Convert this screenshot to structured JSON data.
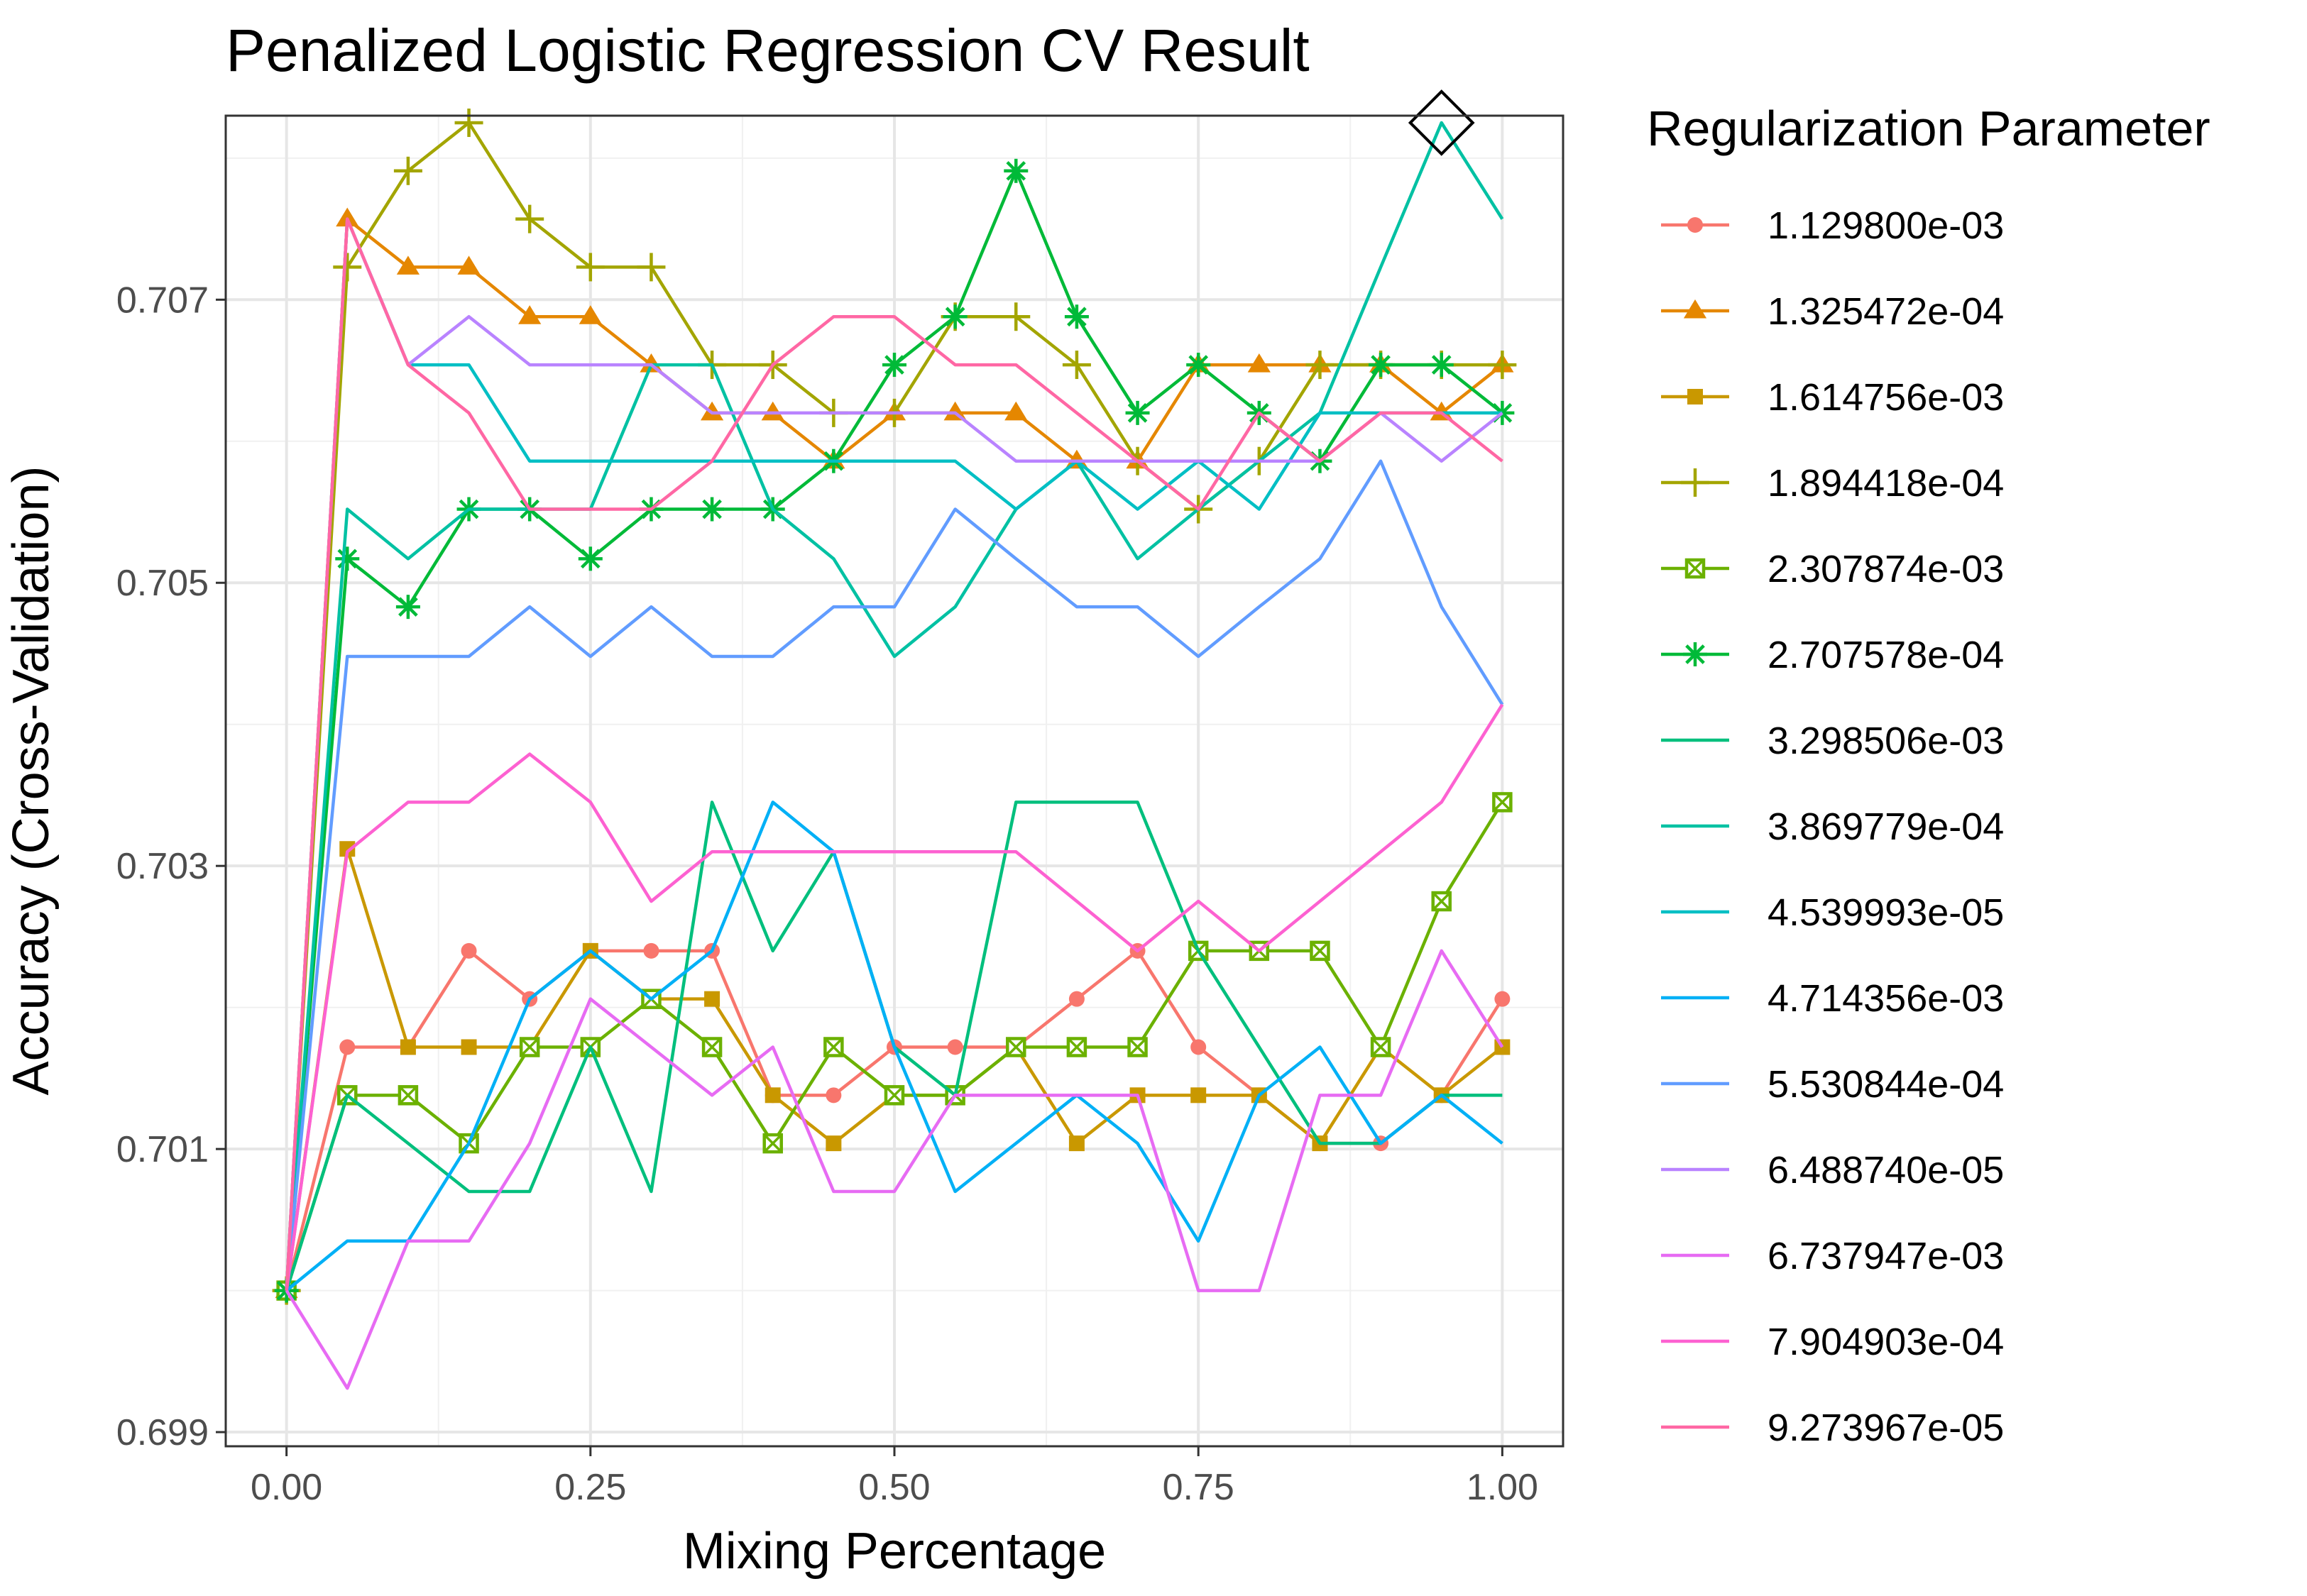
{
  "chart_data": {
    "type": "line",
    "title": "Penalized Logistic Regression CV Result",
    "xlabel": "Mixing Percentage",
    "ylabel": "Accuracy (Cross-Validation)",
    "legend_title": "Regularization Parameter",
    "legend_position": "right",
    "grid": true,
    "xlim": [
      -0.05,
      1.05
    ],
    "ylim": [
      0.6989,
      0.7083
    ],
    "x": [
      0,
      0.05,
      0.1,
      0.15,
      0.2,
      0.25,
      0.3,
      0.35,
      0.4,
      0.45,
      0.5,
      0.55,
      0.6,
      0.65,
      0.7,
      0.75,
      0.8,
      0.85,
      0.9,
      0.95,
      1.0
    ],
    "x_ticks": [
      {
        "value": 0,
        "label": "0.00"
      },
      {
        "value": 0.25,
        "label": "0.25"
      },
      {
        "value": 0.5,
        "label": "0.50"
      },
      {
        "value": 0.75,
        "label": "0.75"
      },
      {
        "value": 1,
        "label": "1.00"
      }
    ],
    "y_ticks": [
      {
        "value": 0.699,
        "label": "0.699"
      },
      {
        "value": 0.701,
        "label": "0.701"
      },
      {
        "value": 0.703,
        "label": "0.703"
      },
      {
        "value": 0.705,
        "label": "0.705"
      },
      {
        "value": 0.707,
        "label": "0.707"
      }
    ],
    "best_point": {
      "x": 0.95,
      "y": 0.70825,
      "marker": "diamond"
    },
    "series": [
      {
        "name": "1.129800e-03",
        "color": "#F8766D",
        "marker": "circle",
        "values": [
          0.7,
          0.70172,
          0.70172,
          0.7024,
          0.70206,
          0.7024,
          0.7024,
          0.7024,
          0.70138,
          0.70138,
          0.70172,
          0.70172,
          0.70172,
          0.70206,
          0.7024,
          0.70172,
          0.70138,
          0.70104,
          0.70104,
          0.70138,
          0.70206
        ]
      },
      {
        "name": "1.325472e-04",
        "color": "#E58700",
        "marker": "triangle",
        "values": [
          0.7,
          0.70757,
          0.70723,
          0.70723,
          0.70688,
          0.70688,
          0.70654,
          0.7062,
          0.7062,
          0.70586,
          0.7062,
          0.7062,
          0.7062,
          0.70586,
          0.70586,
          0.70654,
          0.70654,
          0.70654,
          0.70654,
          0.7062,
          0.70654
        ]
      },
      {
        "name": "1.614756e-03",
        "color": "#C99800",
        "marker": "square",
        "values": [
          0.7,
          0.70312,
          0.70172,
          0.70172,
          0.70172,
          0.7024,
          0.70206,
          0.70206,
          0.70138,
          0.70104,
          0.70138,
          0.70138,
          0.70172,
          0.70104,
          0.70138,
          0.70138,
          0.70138,
          0.70104,
          0.70172,
          0.70138,
          0.70172
        ]
      },
      {
        "name": "1.894418e-04",
        "color": "#A3A500",
        "marker": "plus",
        "values": [
          0.7,
          0.70723,
          0.70791,
          0.70825,
          0.70757,
          0.70723,
          0.70723,
          0.70654,
          0.70654,
          0.7062,
          0.7062,
          0.70688,
          0.70688,
          0.70654,
          0.70586,
          0.70552,
          0.70586,
          0.70654,
          0.70654,
          0.70654,
          0.70654
        ]
      },
      {
        "name": "2.307874e-03",
        "color": "#6BB100",
        "marker": "boxcross",
        "values": [
          0.7,
          0.70138,
          0.70138,
          0.70104,
          0.70172,
          0.70172,
          0.70206,
          0.70172,
          0.70104,
          0.70172,
          0.70138,
          0.70138,
          0.70172,
          0.70172,
          0.70172,
          0.7024,
          0.7024,
          0.7024,
          0.70172,
          0.70275,
          0.70345
        ]
      },
      {
        "name": "2.707578e-04",
        "color": "#00BA38",
        "marker": "asterisk",
        "values": [
          0.7,
          0.70517,
          0.70483,
          0.70552,
          0.70552,
          0.70517,
          0.70552,
          0.70552,
          0.70552,
          0.70586,
          0.70654,
          0.70688,
          0.70791,
          0.70688,
          0.7062,
          0.70654,
          0.7062,
          0.70586,
          0.70654,
          0.70654,
          0.7062
        ]
      },
      {
        "name": "3.298506e-03",
        "color": "#00BF7D",
        "marker": "none",
        "values": [
          0.7,
          0.70138,
          0.70104,
          0.7007,
          0.7007,
          0.70172,
          0.7007,
          0.70345,
          0.7024,
          0.7031,
          0.70172,
          0.70138,
          0.70345,
          0.70345,
          0.70345,
          0.7024,
          0.70172,
          0.70104,
          0.70104,
          0.70138,
          0.70138
        ]
      },
      {
        "name": "3.869779e-04",
        "color": "#00C1A3",
        "marker": "none",
        "values": [
          0.7,
          0.70552,
          0.70517,
          0.70552,
          0.70552,
          0.70552,
          0.70654,
          0.70654,
          0.70552,
          0.70517,
          0.70448,
          0.70483,
          0.70552,
          0.70586,
          0.70517,
          0.70552,
          0.70586,
          0.7062,
          0.70723,
          0.70825,
          0.70757
        ]
      },
      {
        "name": "4.539993e-05",
        "color": "#00BFC4",
        "marker": "none",
        "values": [
          0.7,
          0.70757,
          0.70654,
          0.70654,
          0.70586,
          0.70586,
          0.70586,
          0.70586,
          0.70586,
          0.70586,
          0.70586,
          0.70586,
          0.70552,
          0.70586,
          0.70552,
          0.70586,
          0.70552,
          0.7062,
          0.7062,
          0.7062,
          0.7062
        ]
      },
      {
        "name": "4.714356e-03",
        "color": "#00B0F6",
        "marker": "none",
        "values": [
          0.7,
          0.70035,
          0.70035,
          0.70104,
          0.70206,
          0.7024,
          0.70206,
          0.7024,
          0.70345,
          0.7031,
          0.70172,
          0.7007,
          0.70104,
          0.70138,
          0.70104,
          0.70035,
          0.70138,
          0.70172,
          0.70104,
          0.70138,
          0.70104
        ]
      },
      {
        "name": "5.530844e-04",
        "color": "#619CFF",
        "marker": "none",
        "values": [
          0.7,
          0.70448,
          0.70448,
          0.70448,
          0.70483,
          0.70448,
          0.70483,
          0.70448,
          0.70448,
          0.70483,
          0.70483,
          0.70552,
          0.70517,
          0.70483,
          0.70483,
          0.70448,
          0.70483,
          0.70517,
          0.70586,
          0.70483,
          0.70414
        ]
      },
      {
        "name": "6.488740e-05",
        "color": "#B983FF",
        "marker": "none",
        "values": [
          0.7,
          0.70757,
          0.70654,
          0.70688,
          0.70654,
          0.70654,
          0.70654,
          0.7062,
          0.7062,
          0.7062,
          0.7062,
          0.7062,
          0.70586,
          0.70586,
          0.70586,
          0.70586,
          0.70586,
          0.70586,
          0.7062,
          0.70586,
          0.7062
        ]
      },
      {
        "name": "6.737947e-03",
        "color": "#E76BF3",
        "marker": "none",
        "values": [
          0.7,
          0.69931,
          0.70035,
          0.70035,
          0.70104,
          0.70206,
          0.70172,
          0.70138,
          0.70172,
          0.7007,
          0.7007,
          0.70138,
          0.70138,
          0.70138,
          0.70138,
          0.7,
          0.7,
          0.70138,
          0.70138,
          0.7024,
          0.70172
        ]
      },
      {
        "name": "7.904903e-04",
        "color": "#FD61D1",
        "marker": "none",
        "values": [
          0.7,
          0.7031,
          0.70345,
          0.70345,
          0.70379,
          0.70345,
          0.70275,
          0.7031,
          0.7031,
          0.7031,
          0.7031,
          0.7031,
          0.7031,
          0.70275,
          0.7024,
          0.70275,
          0.7024,
          0.70275,
          0.7031,
          0.70345,
          0.70414
        ]
      },
      {
        "name": "9.273967e-05",
        "color": "#FF67A4",
        "marker": "none",
        "values": [
          0.7,
          0.70757,
          0.70654,
          0.7062,
          0.70552,
          0.70552,
          0.70552,
          0.70586,
          0.70654,
          0.70688,
          0.70688,
          0.70654,
          0.70654,
          0.7062,
          0.70586,
          0.70552,
          0.7062,
          0.70586,
          0.7062,
          0.7062,
          0.70586
        ]
      }
    ]
  }
}
